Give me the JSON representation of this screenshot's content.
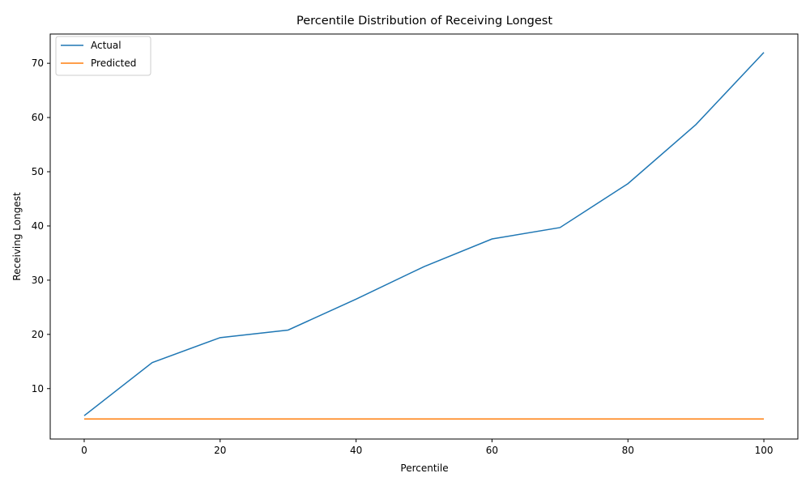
{
  "chart_data": {
    "type": "line",
    "title": "Percentile Distribution of Receiving Longest",
    "xlabel": "Percentile",
    "ylabel": "Receiving Longest",
    "x": [
      0,
      10,
      20,
      30,
      40,
      50,
      60,
      70,
      80,
      90,
      100
    ],
    "xlim": [
      -5,
      105
    ],
    "ylim": [
      0.7,
      75.4
    ],
    "xticks": [
      0,
      20,
      40,
      60,
      80,
      100
    ],
    "yticks": [
      10,
      20,
      30,
      40,
      50,
      60,
      70
    ],
    "grid": false,
    "legend_position": "top-left",
    "series": [
      {
        "name": "Actual",
        "color": "#1f77b4",
        "values": [
          5.0,
          14.8,
          19.4,
          20.8,
          26.5,
          32.5,
          37.6,
          39.7,
          47.8,
          58.7,
          72.0
        ]
      },
      {
        "name": "Predicted",
        "color": "#ff7f0e",
        "values": [
          4.4,
          4.4,
          4.4,
          4.4,
          4.4,
          4.4,
          4.4,
          4.4,
          4.4,
          4.4,
          4.4
        ]
      }
    ]
  }
}
